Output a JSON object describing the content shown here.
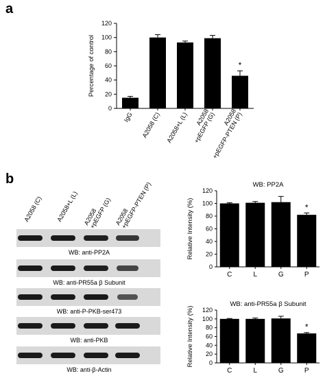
{
  "panels": {
    "a": "a",
    "b": "b"
  },
  "chart_data": [
    {
      "type": "bar",
      "panel": "a",
      "title": "",
      "xlabel": "",
      "ylabel": "Percentage of control",
      "ylim": [
        0,
        120
      ],
      "yticks": [
        "0",
        "20",
        "40",
        "60",
        "80",
        "100",
        "120"
      ],
      "categories": [
        "IgG",
        "A2058 (C)",
        "A2058+L (L)",
        "A2058\n+pEGFP (G)",
        "A2058\n+pEGFP-PTEN (P)"
      ],
      "values": [
        15,
        100,
        93,
        99,
        46
      ],
      "errors": [
        2,
        4,
        2,
        4,
        7
      ],
      "significance": [
        "",
        "",
        "",
        "",
        "*"
      ],
      "grid": false,
      "bar_color": "#000000"
    },
    {
      "type": "bar",
      "panel": "b-top",
      "title": "WB: PP2A",
      "xlabel": "",
      "ylabel": "Relative Intensity (%)",
      "ylim": [
        0,
        120
      ],
      "yticks": [
        "0",
        "20",
        "40",
        "60",
        "80",
        "100",
        "120"
      ],
      "categories": [
        "C",
        "L",
        "G",
        "P"
      ],
      "values": [
        100,
        101,
        102,
        82
      ],
      "errors": [
        1,
        2,
        9,
        3
      ],
      "significance": [
        "",
        "",
        "",
        "*"
      ],
      "grid": false,
      "bar_color": "#000000"
    },
    {
      "type": "bar",
      "panel": "b-bottom",
      "title": "WB: anti-PR55a β Subunit",
      "xlabel": "",
      "ylabel": "Relative Intensity (%)",
      "ylim": [
        0,
        120
      ],
      "yticks": [
        "0",
        "20",
        "40",
        "60",
        "80",
        "100",
        "120"
      ],
      "categories": [
        "C",
        "L",
        "G",
        "P"
      ],
      "values": [
        100,
        100,
        101,
        67
      ],
      "errors": [
        1,
        2,
        5,
        2
      ],
      "significance": [
        "",
        "",
        "",
        "*"
      ],
      "grid": false,
      "bar_color": "#000000"
    }
  ],
  "blot": {
    "lanes": [
      "A2058 (C)",
      "A2058+L (L)",
      "A2058\n+pEGFP (G)",
      "A2058\n+pEGFP-PTEN (P)"
    ],
    "rows": [
      {
        "label": "WB: anti-PP2A",
        "intensity": [
          1.0,
          1.0,
          0.95,
          0.75
        ]
      },
      {
        "label": "WB: anti-PR55a β Subunit",
        "intensity": [
          1.0,
          1.0,
          0.95,
          0.6
        ]
      },
      {
        "label": "WB: anti-P-PKB-ser473",
        "intensity": [
          1.0,
          1.0,
          1.0,
          0.45
        ]
      },
      {
        "label": "WB: anti-PKB",
        "intensity": [
          1.0,
          1.0,
          1.0,
          1.0
        ]
      },
      {
        "label": "WB: anti-β-Actin",
        "intensity": [
          1.0,
          1.0,
          1.0,
          1.0
        ]
      }
    ]
  }
}
